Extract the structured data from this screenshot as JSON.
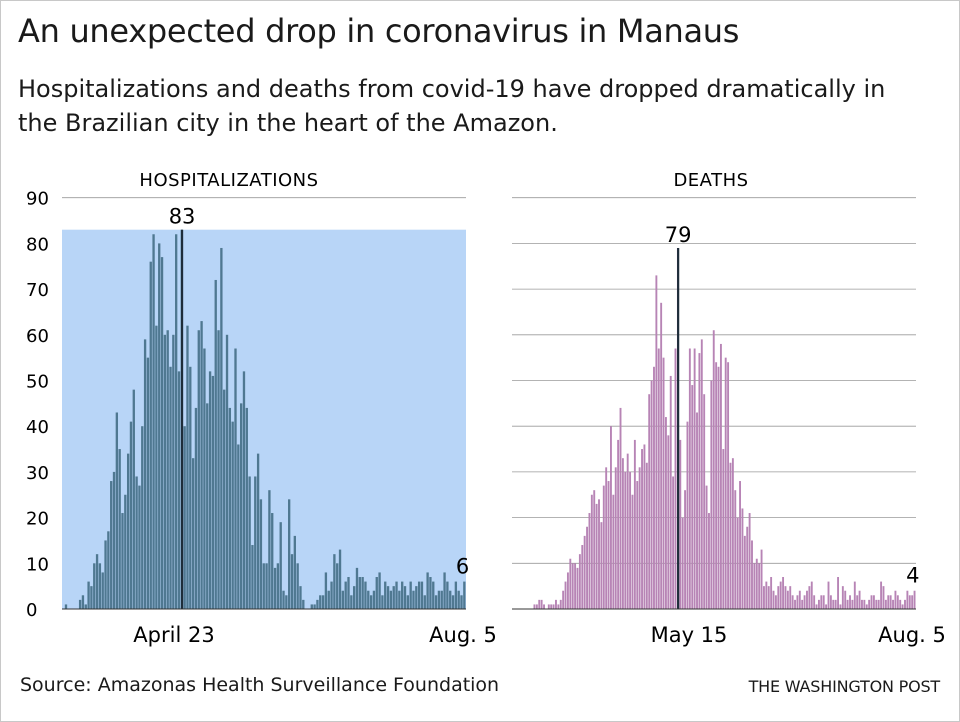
{
  "title": "An unexpected drop in coronavirus in Manaus",
  "subtitle": "Hospitalizations and deaths from covid-19 have dropped dramatically in the Brazilian city in the heart of the Amazon.",
  "source": "Source: Amazonas Health Surveillance Foundation",
  "credit": "THE WASHINGTON POST",
  "colors": {
    "hosp_bar": "#4f7891",
    "hosp_bg": "#b8d5f7",
    "death_bar": "#b784b5",
    "grid": "#9a9a9a",
    "peak_line": "#1e2d3a"
  },
  "chart_data": [
    {
      "type": "bar",
      "title": "HOSPITALIZATIONS",
      "ylim": [
        0,
        90
      ],
      "yticks": [
        0,
        10,
        20,
        30,
        40,
        50,
        60,
        70,
        80,
        90
      ],
      "grid": true,
      "x_tick_labels": [
        "April 23",
        "Aug. 5"
      ],
      "peak": {
        "label": "83",
        "value": 83,
        "date": "April 23"
      },
      "last": {
        "label": "6",
        "value": 6,
        "date": "Aug. 5"
      },
      "values": [
        0,
        1,
        0,
        0,
        0,
        0,
        2,
        3,
        1,
        6,
        5,
        10,
        12,
        10,
        8,
        15,
        17,
        28,
        30,
        43,
        35,
        21,
        25,
        34,
        41,
        48,
        29,
        27,
        40,
        59,
        55,
        76,
        82,
        62,
        80,
        77,
        60,
        61,
        53,
        60,
        82,
        52,
        83,
        40,
        62,
        53,
        33,
        44,
        61,
        63,
        57,
        45,
        52,
        51,
        72,
        61,
        79,
        48,
        60,
        44,
        41,
        57,
        36,
        45,
        52,
        44,
        29,
        14,
        29,
        34,
        24,
        10,
        10,
        26,
        21,
        9,
        10,
        19,
        4,
        3,
        24,
        12,
        16,
        10,
        5,
        2,
        0,
        0,
        1,
        1,
        2,
        3,
        3,
        8,
        4,
        6,
        12,
        10,
        13,
        4,
        6,
        7,
        3,
        5,
        9,
        7,
        7,
        6,
        4,
        3,
        4,
        7,
        8,
        3,
        6,
        5,
        4,
        5,
        6,
        4,
        6,
        5,
        3,
        6,
        4,
        5,
        6,
        6,
        3,
        8,
        7,
        6,
        3,
        4,
        4,
        8,
        6,
        4,
        3,
        6,
        4,
        3,
        6
      ]
    },
    {
      "type": "bar",
      "title": "DEATHS",
      "ylim": [
        0,
        90
      ],
      "grid": true,
      "x_tick_labels": [
        "May 15",
        "Aug. 5"
      ],
      "peak": {
        "label": "79",
        "value": 79,
        "date": "May 15"
      },
      "last": {
        "label": "4",
        "value": 4,
        "date": "Aug. 5"
      },
      "values": [
        0,
        0,
        0,
        0,
        0,
        0,
        0,
        0,
        0,
        1,
        1,
        2,
        2,
        1,
        0,
        1,
        1,
        1,
        2,
        1,
        2,
        4,
        6,
        8,
        11,
        10,
        10,
        9,
        12,
        14,
        16,
        18,
        21,
        25,
        26,
        23,
        24,
        19,
        27,
        31,
        28,
        40,
        25,
        31,
        37,
        44,
        33,
        30,
        34,
        30,
        25,
        37,
        28,
        31,
        35,
        36,
        32,
        47,
        50,
        53,
        73,
        57,
        67,
        55,
        42,
        38,
        51,
        29,
        57,
        79,
        37,
        20,
        26,
        41,
        57,
        49,
        57,
        43,
        56,
        59,
        47,
        27,
        21,
        50,
        61,
        54,
        53,
        58,
        35,
        55,
        54,
        32,
        33,
        26,
        20,
        28,
        22,
        16,
        18,
        21,
        15,
        10,
        11,
        10,
        13,
        5,
        6,
        5,
        7,
        4,
        3,
        5,
        6,
        7,
        5,
        4,
        5,
        3,
        2,
        3,
        4,
        2,
        3,
        4,
        5,
        6,
        3,
        1,
        2,
        3,
        3,
        1,
        6,
        3,
        2,
        2,
        7,
        1,
        5,
        4,
        2,
        3,
        2,
        6,
        3,
        4,
        2,
        2,
        1,
        2,
        3,
        3,
        2,
        2,
        6,
        5,
        2,
        3,
        3,
        2,
        4,
        3,
        2,
        1,
        2,
        4,
        3,
        3,
        4
      ]
    }
  ]
}
